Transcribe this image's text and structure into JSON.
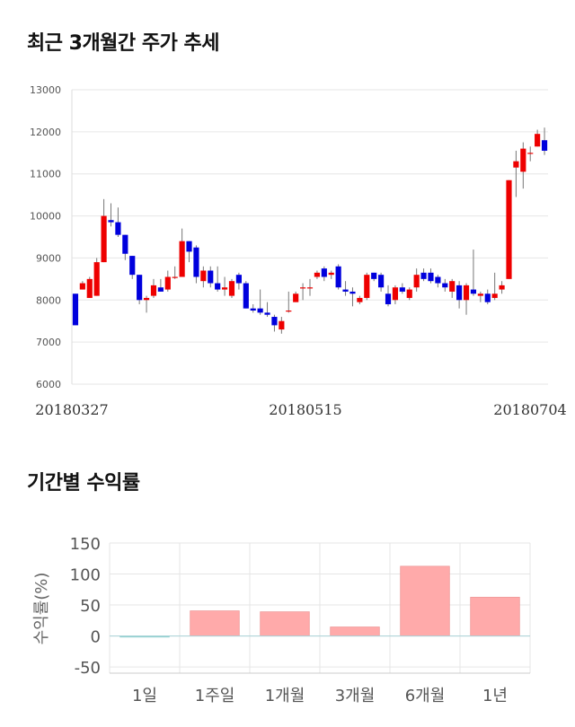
{
  "section_titles": {
    "price_trend": "최근 3개월간 주가 추세",
    "period_returns": "기간별 수익률"
  },
  "chart_data": [
    {
      "type": "candlestick",
      "title": "최근 3개월간 주가 추세",
      "ylim": [
        6000,
        13000
      ],
      "yticks": [
        "13000",
        "12000",
        "11000",
        "10000",
        "9000",
        "8000",
        "7000",
        "6000"
      ],
      "x_tick_labels": [
        "20180327",
        "20180515",
        "20180704"
      ],
      "grid": true,
      "up_color": "#ee0000",
      "down_color": "#0000dd",
      "candles": [
        [
          8150,
          7400,
          8150,
          7400
        ],
        [
          8250,
          8400,
          8450,
          8250
        ],
        [
          8050,
          8500,
          8550,
          8050
        ],
        [
          8100,
          8900,
          9000,
          8100
        ],
        [
          8900,
          10000,
          10400,
          8900
        ],
        [
          9900,
          9850,
          10300,
          9750
        ],
        [
          9850,
          9550,
          10200,
          9500
        ],
        [
          9550,
          9100,
          9550,
          8950
        ],
        [
          9050,
          8600,
          9050,
          8500
        ],
        [
          8600,
          8000,
          8600,
          7900
        ],
        [
          8000,
          8050,
          8100,
          7700
        ],
        [
          8100,
          8350,
          8500,
          8050
        ],
        [
          8300,
          8200,
          8500,
          8200
        ],
        [
          8250,
          8550,
          8700,
          8200
        ],
        [
          8550,
          8550,
          8800,
          8500
        ],
        [
          8550,
          9400,
          9700,
          8550
        ],
        [
          9400,
          9150,
          9400,
          8900
        ],
        [
          9250,
          8550,
          9300,
          8400
        ],
        [
          8450,
          8700,
          8800,
          8300
        ],
        [
          8700,
          8400,
          8800,
          8300
        ],
        [
          8400,
          8250,
          8800,
          8200
        ],
        [
          8250,
          8300,
          8550,
          8100
        ],
        [
          8100,
          8450,
          8500,
          8050
        ],
        [
          8600,
          8400,
          8650,
          8250
        ],
        [
          8400,
          7800,
          8450,
          7800
        ],
        [
          7800,
          7750,
          7900,
          7700
        ],
        [
          7800,
          7700,
          8250,
          7650
        ],
        [
          7700,
          7650,
          7950,
          7600
        ],
        [
          7600,
          7400,
          7650,
          7250
        ],
        [
          7300,
          7500,
          7600,
          7200
        ],
        [
          7750,
          7750,
          8200,
          7700
        ],
        [
          7950,
          8150,
          8200,
          7950
        ],
        [
          8300,
          8300,
          8400,
          8000
        ],
        [
          8300,
          8300,
          8500,
          8100
        ],
        [
          8550,
          8650,
          8700,
          8500
        ],
        [
          8750,
          8550,
          8800,
          8450
        ],
        [
          8600,
          8650,
          8700,
          8500
        ],
        [
          8800,
          8300,
          8850,
          8250
        ],
        [
          8250,
          8200,
          8450,
          8100
        ],
        [
          8200,
          8150,
          8300,
          7850
        ],
        [
          7950,
          8050,
          8100,
          7900
        ],
        [
          8050,
          8600,
          8650,
          8000
        ],
        [
          8650,
          8500,
          8650,
          8450
        ],
        [
          8600,
          8300,
          8650,
          8200
        ],
        [
          8150,
          7900,
          8350,
          7850
        ],
        [
          8000,
          8300,
          8350,
          7900
        ],
        [
          8300,
          8200,
          8400,
          8150
        ],
        [
          8050,
          8250,
          8300,
          8000
        ],
        [
          8300,
          8600,
          8750,
          8200
        ],
        [
          8650,
          8500,
          8750,
          8450
        ],
        [
          8650,
          8450,
          8750,
          8400
        ],
        [
          8550,
          8400,
          8600,
          8300
        ],
        [
          8400,
          8300,
          8500,
          8200
        ],
        [
          8200,
          8450,
          8500,
          8050
        ],
        [
          8350,
          8000,
          8450,
          7800
        ],
        [
          8000,
          8350,
          8400,
          7650
        ],
        [
          8250,
          8150,
          9200,
          8100
        ],
        [
          8100,
          8150,
          8200,
          7950
        ],
        [
          8150,
          7950,
          8250,
          7900
        ],
        [
          8050,
          8150,
          8650,
          8000
        ],
        [
          8250,
          8350,
          8450,
          8150
        ],
        [
          8500,
          10850,
          10850,
          8500
        ],
        [
          11150,
          11300,
          11550,
          10450
        ],
        [
          11050,
          11600,
          11750,
          10650
        ],
        [
          11500,
          11500,
          11650,
          11300
        ],
        [
          11650,
          11950,
          12050,
          11650
        ],
        [
          11800,
          11550,
          12100,
          11450
        ]
      ]
    },
    {
      "type": "bar",
      "title": "기간별 수익률",
      "categories": [
        "1일",
        "1주일",
        "1개월",
        "3개월",
        "6개월",
        "1년"
      ],
      "values": [
        -1.5,
        40.5,
        39,
        14.5,
        112.5,
        62.5
      ],
      "ylabel": "수익률(%)",
      "ylim": [
        -60,
        150
      ],
      "yticks": [
        "150",
        "100",
        "50",
        "0",
        "-50"
      ],
      "positive_color": "#ffaaaa",
      "negative_color": "#aadddd",
      "grid": true
    }
  ]
}
